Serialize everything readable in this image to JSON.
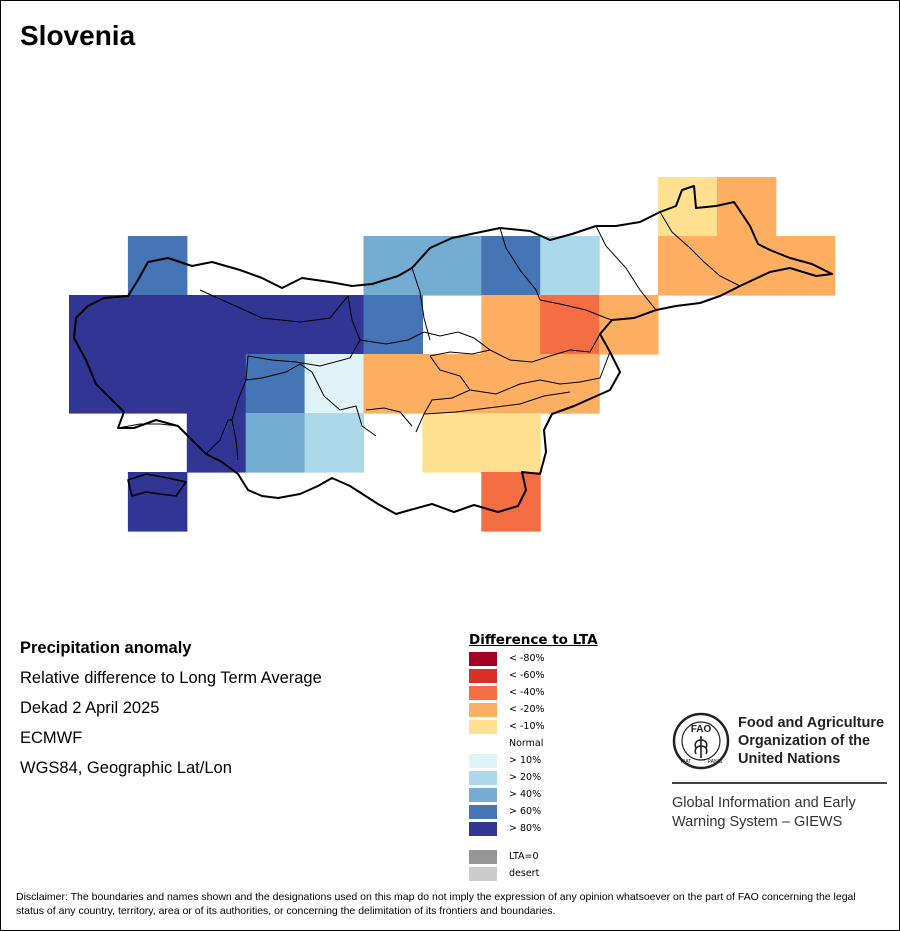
{
  "title": "Slovenia",
  "info": {
    "heading": "Precipitation anomaly",
    "lines": [
      "Relative difference to Long Term Average",
      "Dekad 2 April 2025",
      "ECMWF",
      "WGS84, Geographic Lat/Lon"
    ]
  },
  "legend": {
    "title": "Difference to LTA",
    "dry": [
      {
        "label": "< -80%",
        "color": "#a50026"
      },
      {
        "label": "< -60%",
        "color": "#d73027"
      },
      {
        "label": "< -40%",
        "color": "#f46d43"
      },
      {
        "label": "< -20%",
        "color": "#fdae61"
      },
      {
        "label": "< -10%",
        "color": "#fee090"
      }
    ],
    "normal_label": "Normal",
    "wet": [
      {
        "label": "> 10%",
        "color": "#e0f3f8"
      },
      {
        "label": "> 20%",
        "color": "#abd9e9"
      },
      {
        "label": "> 40%",
        "color": "#74add1"
      },
      {
        "label": "> 60%",
        "color": "#4575b4"
      },
      {
        "label": "> 80%",
        "color": "#313695"
      }
    ],
    "special": [
      {
        "label": "LTA=0",
        "color": "#969696"
      },
      {
        "label": "desert",
        "color": "#cccccc"
      }
    ]
  },
  "map": {
    "grid_cells": [
      {
        "row": 0,
        "col": 10,
        "class": "< -10%"
      },
      {
        "row": 0,
        "col": 11,
        "class": "< -20%"
      },
      {
        "row": 1,
        "col": 1,
        "class": "> 60%"
      },
      {
        "row": 1,
        "col": 5,
        "class": "> 40%"
      },
      {
        "row": 1,
        "col": 6,
        "class": "> 40%"
      },
      {
        "row": 1,
        "col": 7,
        "class": "> 60%"
      },
      {
        "row": 1,
        "col": 8,
        "class": "> 20%"
      },
      {
        "row": 1,
        "col": 10,
        "class": "< -20%"
      },
      {
        "row": 1,
        "col": 11,
        "class": "< -20%"
      },
      {
        "row": 1,
        "col": 12,
        "class": "< -20%"
      },
      {
        "row": 2,
        "col": 0,
        "class": "> 80%"
      },
      {
        "row": 2,
        "col": 1,
        "class": "> 80%"
      },
      {
        "row": 2,
        "col": 2,
        "class": "> 80%"
      },
      {
        "row": 2,
        "col": 3,
        "class": "> 80%"
      },
      {
        "row": 2,
        "col": 4,
        "class": "> 80%"
      },
      {
        "row": 2,
        "col": 5,
        "class": "> 60%"
      },
      {
        "row": 2,
        "col": 7,
        "class": "< -20%"
      },
      {
        "row": 2,
        "col": 8,
        "class": "< -40%"
      },
      {
        "row": 2,
        "col": 9,
        "class": "< -20%"
      },
      {
        "row": 3,
        "col": 0,
        "class": "> 80%"
      },
      {
        "row": 3,
        "col": 1,
        "class": "> 80%"
      },
      {
        "row": 3,
        "col": 2,
        "class": "> 80%"
      },
      {
        "row": 3,
        "col": 3,
        "class": "> 60%"
      },
      {
        "row": 3,
        "col": 4,
        "class": "> 10%"
      },
      {
        "row": 3,
        "col": 5,
        "class": "< -20%"
      },
      {
        "row": 3,
        "col": 6,
        "class": "< -20%"
      },
      {
        "row": 3,
        "col": 7,
        "class": "< -20%"
      },
      {
        "row": 3,
        "col": 8,
        "class": "< -20%"
      },
      {
        "row": 4,
        "col": 2,
        "class": "> 80%"
      },
      {
        "row": 4,
        "col": 3,
        "class": "> 40%"
      },
      {
        "row": 4,
        "col": 4,
        "class": "> 20%"
      },
      {
        "row": 4,
        "col": 6,
        "class": "< -10%"
      },
      {
        "row": 4,
        "col": 7,
        "class": "< -10%"
      },
      {
        "row": 5,
        "col": 1,
        "class": "> 80%"
      },
      {
        "row": 5,
        "col": 7,
        "class": "< -40%"
      }
    ]
  },
  "fao": {
    "name_lines": [
      "Food and Agriculture",
      "Organization of the",
      "United Nations"
    ],
    "logo_text": "FAO",
    "logo_ring_left": "FIAT",
    "logo_ring_right": "PANIS",
    "giews_lines": [
      "Global Information and Early",
      "Warning System – GIEWS"
    ]
  },
  "disclaimer": "Disclaimer: The boundaries and names shown and the designations used on this map do not imply the expression of any opinion whatsoever on the part of FAO concerning the legal status of any country, territory, area or of its authorities, or concerning the delimitation of its frontiers and boundaries."
}
